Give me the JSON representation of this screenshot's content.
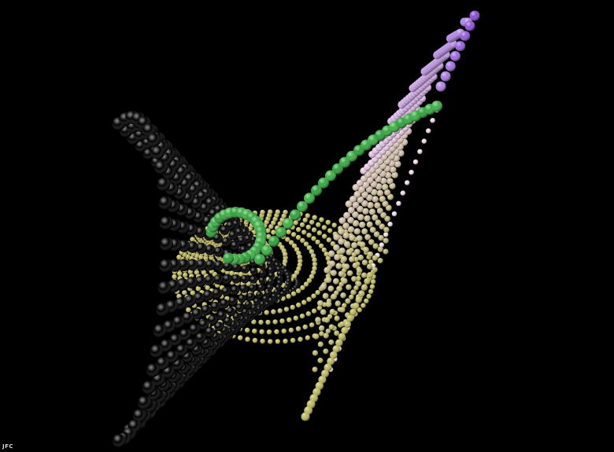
{
  "signature": "JFC",
  "colors": {
    "background": "#000000",
    "violet": "#b084e6",
    "pale_pink": "#e8c8e0",
    "green_strand": "#2ea03a",
    "yellow": "#d4c84a",
    "orange": "#d98a2a",
    "teal": "#5fb8a8",
    "blue": "#4a7ac8",
    "olive": "#b6b464"
  }
}
